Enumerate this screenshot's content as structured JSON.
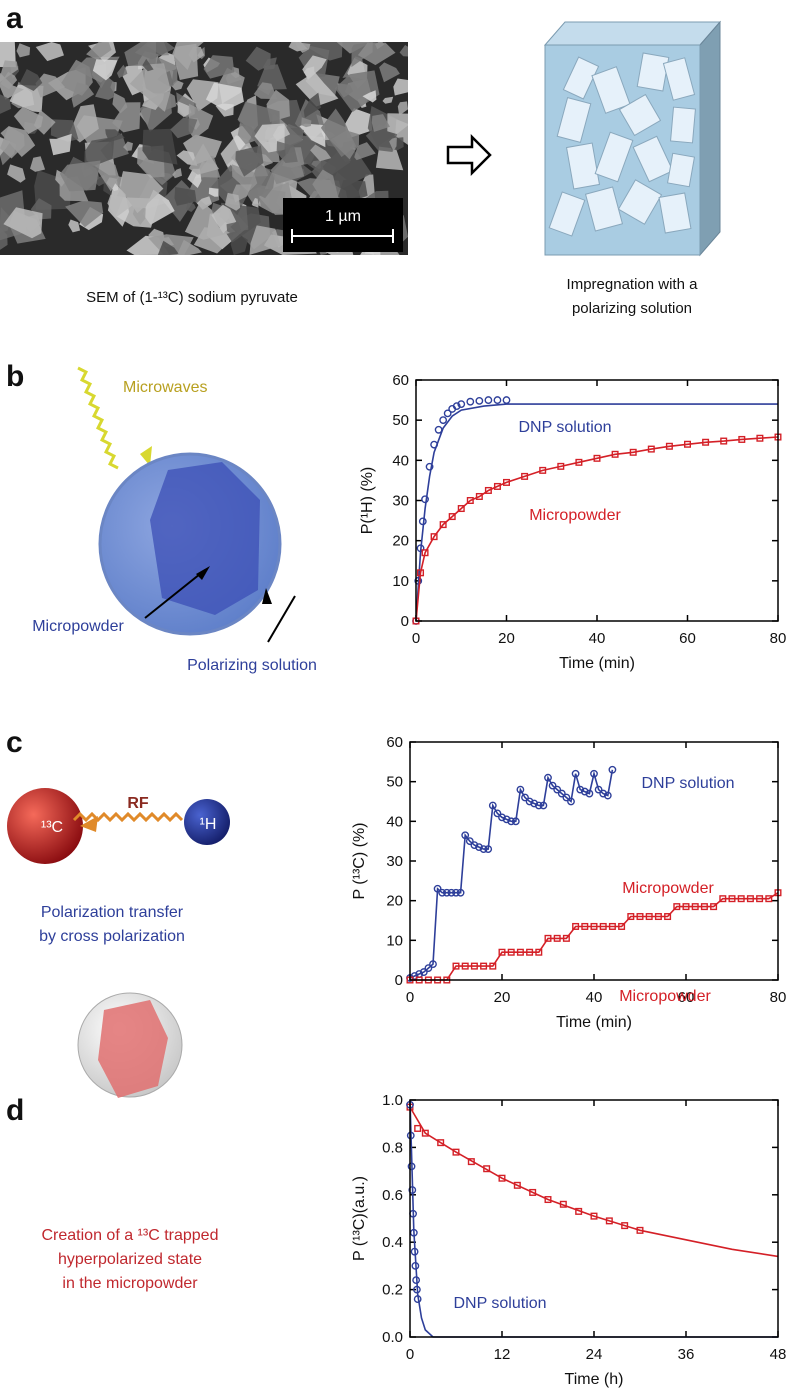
{
  "panel_labels": [
    "a",
    "b",
    "c",
    "d"
  ],
  "panel_a": {
    "sem_caption": "SEM of (1-¹³C) sodium pyruvate",
    "scale_bar": "1 µm",
    "impregnation_caption": [
      "Impregnation with a",
      "polarizing solution"
    ]
  },
  "panel_b": {
    "microwaves": "Microwaves",
    "micropowder": "Micropowder",
    "polarizing_solution": "Polarizing solution"
  },
  "panel_c": {
    "rf": "RF",
    "proton": "¹H",
    "carbon": "¹³C",
    "caption": [
      "Polarization transfer",
      "by cross polarization"
    ]
  },
  "panel_d": {
    "caption": [
      "Creation of a ¹³C trapped",
      "hyperpolarized state",
      "in the micropowder"
    ]
  },
  "chart_data": [
    {
      "type": "line",
      "xlabel": "Time (min)",
      "ylabel": "P(¹H) (%)",
      "xlim": [
        0,
        80
      ],
      "ylim": [
        0,
        60
      ],
      "xticks": [
        0,
        20,
        40,
        60,
        80
      ],
      "yticks": [
        0,
        10,
        20,
        30,
        40,
        50,
        60
      ],
      "series": [
        {
          "name": "DNP solution",
          "color": "#2e3f9a",
          "marker": "circle",
          "x": [
            0,
            0.5,
            1,
            1.5,
            2,
            3,
            4,
            5,
            6,
            7,
            8,
            9,
            10,
            12,
            14,
            16,
            18,
            20
          ],
          "values": [
            0,
            10,
            18.1,
            24.8,
            30.3,
            38.4,
            43.9,
            47.6,
            50,
            51.7,
            52.8,
            53.5,
            54,
            54.6,
            54.8,
            55,
            55,
            55
          ]
        },
        {
          "color": "#2e3f9a",
          "line": true,
          "x": [
            0,
            1,
            2,
            3,
            4,
            6,
            8,
            10,
            15,
            20,
            80
          ],
          "values": [
            0,
            17,
            28,
            36,
            42,
            48,
            51,
            52.5,
            53.5,
            54,
            54
          ]
        },
        {
          "name": "Micropowder",
          "color": "#d42027",
          "marker": "square",
          "line": true,
          "x": [
            0,
            1,
            2,
            4,
            6,
            8,
            10,
            12,
            14,
            16,
            18,
            20,
            24,
            28,
            32,
            36,
            40,
            44,
            48,
            52,
            56,
            60,
            64,
            68,
            72,
            76,
            80
          ],
          "values": [
            0,
            12,
            17,
            21,
            24,
            26,
            28,
            30,
            31,
            32.5,
            33.5,
            34.5,
            36,
            37.5,
            38.5,
            39.5,
            40.5,
            41.5,
            42,
            42.8,
            43.5,
            44,
            44.5,
            44.8,
            45.2,
            45.5,
            45.8
          ]
        }
      ]
    },
    {
      "type": "line",
      "xlabel": "Time (min)",
      "ylabel": "P (¹³C) (%)",
      "xlim": [
        0,
        80
      ],
      "ylim": [
        0,
        60
      ],
      "xticks": [
        0,
        20,
        40,
        60,
        80
      ],
      "yticks": [
        0,
        10,
        20,
        30,
        40,
        50,
        60
      ],
      "series": [
        {
          "name": "DNP solution",
          "color": "#2e3f9a",
          "marker": "circle",
          "line": true,
          "x": [
            0,
            1,
            2,
            3,
            4,
            5,
            6,
            7,
            8,
            9,
            10,
            11,
            12,
            13,
            14,
            15,
            16,
            17,
            18,
            19,
            20,
            21,
            22,
            23,
            24,
            25,
            26,
            27,
            28,
            29,
            30,
            31,
            32,
            33,
            34,
            35,
            36,
            37,
            38,
            39,
            40,
            41,
            42,
            43,
            44
          ],
          "values": [
            0.5,
            1,
            1.5,
            2,
            3,
            4,
            23,
            22,
            22,
            22,
            22,
            22,
            36.5,
            35,
            34,
            33.5,
            33,
            33,
            44,
            42,
            41,
            40.5,
            40,
            40,
            48,
            46,
            45,
            44.5,
            44,
            44,
            51,
            49,
            48,
            47,
            46,
            45,
            52,
            48,
            47.5,
            47,
            52,
            48,
            47,
            46.5,
            53
          ]
        },
        {
          "name": "Micropowder",
          "color": "#d42027",
          "marker": "square",
          "line": true,
          "x": [
            0,
            2,
            4,
            6,
            8,
            10,
            12,
            14,
            16,
            18,
            20,
            22,
            24,
            26,
            28,
            30,
            32,
            34,
            36,
            38,
            40,
            42,
            44,
            46,
            48,
            50,
            52,
            54,
            56,
            58,
            60,
            62,
            64,
            66,
            68,
            70,
            72,
            74,
            76,
            78,
            80
          ],
          "values": [
            0,
            0,
            0,
            0,
            0,
            3.5,
            3.5,
            3.5,
            3.5,
            3.5,
            7,
            7,
            7,
            7,
            7,
            10.5,
            10.5,
            10.5,
            13.5,
            13.5,
            13.5,
            13.5,
            13.5,
            13.5,
            16,
            16,
            16,
            16,
            16,
            18.5,
            18.5,
            18.5,
            18.5,
            18.5,
            20.5,
            20.5,
            20.5,
            20.5,
            20.5,
            20.5,
            22
          ]
        }
      ]
    },
    {
      "type": "line",
      "xlabel": "Time (h)",
      "ylabel": "P (¹³C)(a.u.)",
      "xlim": [
        0,
        48
      ],
      "ylim": [
        0,
        1
      ],
      "xticks": [
        0,
        12,
        24,
        36,
        48
      ],
      "yticks": [
        {
          "value": 0,
          "label": "0.0"
        },
        {
          "value": 0.2,
          "label": "0.2"
        },
        {
          "value": 0.4,
          "label": "0.4"
        },
        {
          "value": 0.6,
          "label": "0.6"
        },
        {
          "value": 0.8,
          "label": "0.8"
        },
        {
          "value": 1,
          "label": "1.0"
        }
      ],
      "series": [
        {
          "name": "Micropowder",
          "color": "#d42027",
          "marker": "square",
          "x": [
            0,
            1,
            2,
            4,
            6,
            8,
            10,
            12,
            14,
            16,
            18,
            20,
            22,
            24,
            26,
            28,
            30
          ],
          "values": [
            0.97,
            0.88,
            0.86,
            0.82,
            0.78,
            0.74,
            0.71,
            0.67,
            0.64,
            0.61,
            0.58,
            0.56,
            0.53,
            0.51,
            0.49,
            0.47,
            0.45
          ]
        },
        {
          "color": "#d42027",
          "line": true,
          "x": [
            0,
            2,
            6,
            12,
            18,
            24,
            30,
            36,
            42,
            48
          ],
          "values": [
            0.97,
            0.86,
            0.78,
            0.67,
            0.58,
            0.51,
            0.45,
            0.41,
            0.37,
            0.34
          ]
        },
        {
          "name": "DNP solution",
          "color": "#2e3f9a",
          "marker": "circle",
          "x": [
            0,
            0.1,
            0.2,
            0.3,
            0.4,
            0.5,
            0.6,
            0.7,
            0.8,
            0.9,
            1
          ],
          "values": [
            0.98,
            0.85,
            0.72,
            0.62,
            0.52,
            0.44,
            0.36,
            0.3,
            0.24,
            0.2,
            0.16
          ]
        },
        {
          "color": "#2e3f9a",
          "line": true,
          "x": [
            0,
            0.5,
            1,
            1.5,
            2,
            3,
            48
          ],
          "values": [
            1,
            0.45,
            0.18,
            0.08,
            0.03,
            0,
            0
          ]
        }
      ]
    }
  ]
}
